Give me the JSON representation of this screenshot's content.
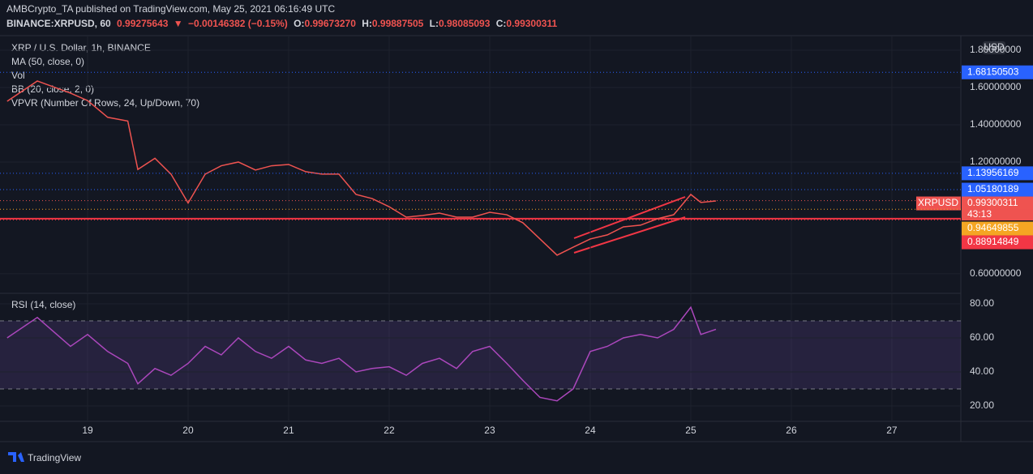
{
  "header": {
    "publisher": "AMBCrypto_TA published on TradingView.com, May 25, 2021 06:16:49 UTC",
    "symbol": "BINANCE:XRPUSD, 60",
    "last": "0.99275643",
    "arrow": "▼",
    "change": "−0.00146382 (−0.15%)",
    "open_label": "O:",
    "open": "0.99673270",
    "high_label": "H:",
    "high": "0.99887505",
    "low_label": "L:",
    "low": "0.98085093",
    "close_label": "C:",
    "close": "0.99300311"
  },
  "legend": [
    "XRP / U.S. Dollar, 1h, BINANCE",
    "MA (50, close, 0)",
    "Vol",
    "BB (20, close, 2, 0)",
    "VPVR (Number Of Rows, 24, Up/Down, 70)"
  ],
  "footer": "TradingView",
  "chart_data": [
    {
      "type": "line",
      "currency": "USD",
      "x": [
        18.2,
        18.5,
        18.83,
        19.0,
        19.2,
        19.4,
        19.5,
        19.67,
        19.83,
        20.0,
        20.17,
        20.33,
        20.5,
        20.67,
        20.83,
        21.0,
        21.17,
        21.33,
        21.5,
        21.67,
        21.83,
        22.0,
        22.17,
        22.33,
        22.5,
        22.67,
        22.83,
        23.0,
        23.17,
        23.33,
        23.5,
        23.67,
        23.83,
        24.0,
        24.17,
        24.33,
        24.5,
        24.67,
        24.83,
        25.0,
        25.1,
        25.25
      ],
      "series": [
        {
          "color": "#ef5350",
          "values": [
            1.526,
            1.635,
            1.57,
            1.53,
            1.44,
            1.42,
            1.16,
            1.22,
            1.135,
            0.98,
            1.135,
            1.18,
            1.2,
            1.157,
            1.18,
            1.187,
            1.148,
            1.135,
            1.135,
            1.026,
            1.004,
            0.96,
            0.904,
            0.913,
            0.926,
            0.904,
            0.904,
            0.93,
            0.917,
            0.874,
            0.787,
            0.7,
            0.743,
            0.787,
            0.809,
            0.852,
            0.861,
            0.896,
            0.917,
            1.026,
            0.983,
            0.991
          ]
        }
      ],
      "xlim": [
        18.129,
        27.686
      ],
      "xticks": [
        19,
        20,
        21,
        22,
        23,
        24,
        25,
        26,
        27
      ],
      "ylim": [
        0.504,
        1.874
      ],
      "yticks": [
        {
          "value": 1.8,
          "label": "1.80000000"
        },
        {
          "value": 1.6,
          "label": "1.60000000"
        },
        {
          "value": 1.4,
          "label": "1.40000000"
        },
        {
          "value": 1.2,
          "label": "1.20000000"
        },
        {
          "value": 0.6,
          "label": "0.60000000"
        }
      ],
      "price_labels": [
        {
          "value": 1.68150503,
          "label": "1.68150503",
          "color": "#2962ff"
        },
        {
          "value": 1.13956169,
          "label": "1.13956169",
          "color": "#2962ff"
        },
        {
          "value": 1.05180189,
          "label": "1.05180189",
          "color": "#2962ff"
        },
        {
          "value": 0.99300311,
          "label": "0.99300311",
          "color": "#ef5350",
          "name": "XRPUSD",
          "countdown": "43:13"
        },
        {
          "value": 0.94649855,
          "label": "0.94649855",
          "color": "#f5a623"
        },
        {
          "value": 0.88914849,
          "label": "0.88914849",
          "color": "#f23645"
        }
      ],
      "support_level": 0.896,
      "support_color": "#f23645"
    },
    {
      "type": "line",
      "title": "RSI (14, close)",
      "x": [
        18.2,
        18.5,
        18.83,
        19.0,
        19.2,
        19.4,
        19.5,
        19.67,
        19.83,
        20.0,
        20.17,
        20.33,
        20.5,
        20.67,
        20.83,
        21.0,
        21.17,
        21.33,
        21.5,
        21.67,
        21.83,
        22.0,
        22.17,
        22.33,
        22.5,
        22.67,
        22.83,
        23.0,
        23.17,
        23.33,
        23.5,
        23.67,
        23.83,
        24.0,
        24.17,
        24.33,
        24.5,
        24.67,
        24.83,
        25.0,
        25.1,
        25.25
      ],
      "series": [
        {
          "color": "#ab47bc",
          "values": [
            60,
            72,
            55,
            62,
            52,
            45,
            33,
            42,
            38,
            45,
            55,
            50,
            60,
            52,
            48,
            55,
            47,
            45,
            48,
            40,
            42,
            43,
            38,
            45,
            48,
            42,
            52,
            55,
            45,
            35,
            25,
            23,
            30,
            52,
            55,
            60,
            62,
            60,
            65,
            78,
            62,
            65
          ]
        }
      ],
      "xlim": [
        18.129,
        27.686
      ],
      "ylim": [
        10.95,
        85.7
      ],
      "yticks": [
        {
          "value": 80,
          "label": "80.00"
        },
        {
          "value": 60,
          "label": "60.00"
        },
        {
          "value": 40,
          "label": "40.00"
        },
        {
          "value": 20,
          "label": "20.00"
        }
      ],
      "bands": [
        30,
        70
      ]
    }
  ]
}
